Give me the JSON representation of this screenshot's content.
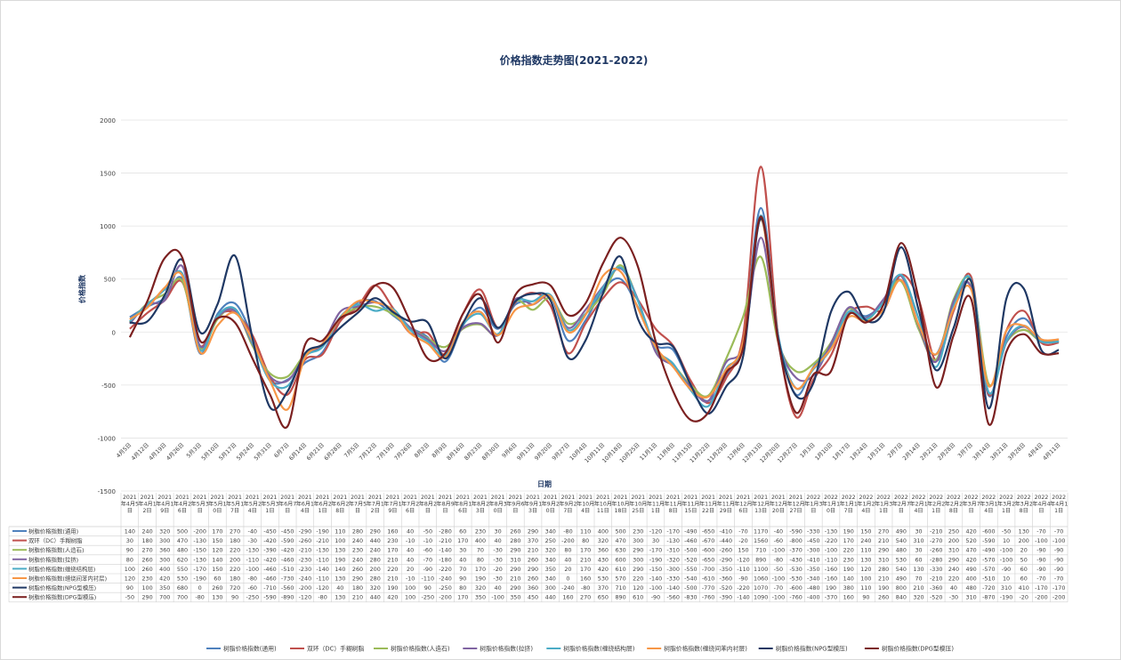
{
  "chart_data": {
    "type": "line",
    "title": "价格指数走势图(2021-2022)",
    "xlabel": "日期",
    "ylabel": "价格指数",
    "ylim": [
      -1500,
      2000
    ],
    "yticks": [
      -1500,
      -1000,
      -500,
      0,
      500,
      1000,
      1500,
      2000
    ],
    "grid": true,
    "legend_position": "bottom",
    "categories": [
      "4月5日",
      "4月12日",
      "4月19日",
      "4月26日",
      "5月3日",
      "5月10日",
      "5月17日",
      "5月24日",
      "5月31日",
      "6月7日",
      "6月14日",
      "6月21日",
      "6月28日",
      "7月5日",
      "7月12日",
      "7月19日",
      "7月26日",
      "8月2日",
      "8月9日",
      "8月16日",
      "8月23日",
      "8月30日",
      "9月6日",
      "9月13日",
      "9月20日",
      "9月27日",
      "10月4日",
      "10月11日",
      "10月18日",
      "10月25日",
      "11月1日",
      "11月8日",
      "11月15日",
      "11月22日",
      "11月29日",
      "12月6日",
      "12月13日",
      "12月20日",
      "12月27日",
      "1月3日",
      "1月10日",
      "1月17日",
      "1月24日",
      "1月31日",
      "2月7日",
      "2月14日",
      "2月21日",
      "2月28日",
      "3月7日",
      "3月14日",
      "3月21日",
      "3月28日",
      "4月4日",
      "4月11日"
    ],
    "table_headers": [
      "2021年4月5日",
      "2021年4月12日",
      "2021年4月19日",
      "2021年4月26日",
      "2021年5月3日",
      "2021年5月10日",
      "2021年5月17日",
      "2021年5月24日",
      "2021年5月31日",
      "2021年6月7日",
      "2021年6月14日",
      "2021年6月21日",
      "2021年6月28日",
      "2021年7月5日",
      "2021年7月12日",
      "2021年7月19日",
      "2021年7月26日",
      "2021年8月2日",
      "2021年8月9日",
      "2021年8月16日",
      "2021年8月23日",
      "2021年8月30日",
      "2021年9月6日",
      "2021年9月13日",
      "2021年9月20日",
      "2021年9月27日",
      "2021年10月4日",
      "2021年10月11日",
      "2021年10月18日",
      "2021年10月25日",
      "2021年11月1日",
      "2021年11月8日",
      "2021年11月15日",
      "2021年11月22日",
      "2021年11月29日",
      "2021年12月6日",
      "2021年12月13日",
      "2021年12月20日",
      "2021年12月27日",
      "2022年1月3日",
      "2022年1月10日",
      "2022年1月17日",
      "2022年1月24日",
      "2022年1月31日",
      "2022年2月7日",
      "2022年2月14日",
      "2022年2月21日",
      "2022年2月28日",
      "2022年3月7日",
      "2022年3月14日",
      "2022年3月21日",
      "2022年3月28日",
      "2022年4月4日",
      "2022年4月11日"
    ],
    "series": [
      {
        "name": "树脂价格指数(通用)",
        "color": "#4f81bd",
        "values": [
          140,
          240,
          320,
          500,
          -200,
          170,
          270,
          -40,
          -450,
          -450,
          -290,
          -190,
          110,
          280,
          290,
          160,
          40,
          -50,
          -280,
          60,
          230,
          30,
          260,
          290,
          340,
          -80,
          110,
          400,
          500,
          230,
          -120,
          -170,
          -490,
          -650,
          -410,
          -70,
          1170,
          -40,
          -590,
          -330,
          -130,
          190,
          150,
          270,
          490,
          30,
          -210,
          250,
          420,
          -600,
          -50,
          130,
          -70,
          -70
        ]
      },
      {
        "name": "双环（DC）手糊树脂",
        "color": "#c0504d",
        "values": [
          30,
          180,
          300,
          470,
          -130,
          150,
          180,
          -30,
          -420,
          -590,
          -260,
          -210,
          100,
          240,
          440,
          230,
          -10,
          -10,
          -210,
          170,
          400,
          40,
          280,
          370,
          250,
          -200,
          80,
          320,
          470,
          300,
          30,
          -130,
          -460,
          -670,
          -440,
          -20,
          1560,
          -60,
          -800,
          -450,
          -220,
          170,
          240,
          210,
          540,
          310,
          -270,
          200,
          520,
          -590,
          10,
          200,
          -100,
          -100
        ]
      },
      {
        "name": "树脂价格指数(人造石)",
        "color": "#9bbb59",
        "values": [
          90,
          270,
          360,
          480,
          -150,
          120,
          220,
          -130,
          -390,
          -420,
          -210,
          -130,
          130,
          230,
          240,
          170,
          40,
          -60,
          -140,
          30,
          70,
          -30,
          290,
          210,
          320,
          80,
          170,
          360,
          630,
          290,
          -170,
          -310,
          -500,
          -600,
          -260,
          150,
          710,
          -100,
          -370,
          -300,
          -100,
          220,
          110,
          290,
          480,
          30,
          -260,
          310,
          470,
          -490,
          -100,
          20,
          -90,
          -90
        ]
      },
      {
        "name": "树脂价格指数(拉挤)",
        "color": "#8064a2",
        "values": [
          80,
          260,
          300,
          620,
          -130,
          140,
          200,
          -110,
          -420,
          -460,
          -230,
          -110,
          190,
          240,
          280,
          210,
          40,
          -70,
          -180,
          40,
          80,
          -30,
          310,
          260,
          340,
          40,
          210,
          430,
          600,
          300,
          -190,
          -320,
          -520,
          -650,
          -290,
          -120,
          890,
          -80,
          -430,
          -410,
          -110,
          230,
          130,
          310,
          530,
          60,
          -280,
          290,
          420,
          -570,
          -100,
          50,
          -90,
          -90
        ]
      },
      {
        "name": "树脂价格指数(缠绕结构层)",
        "color": "#4bacc6",
        "values": [
          100,
          260,
          400,
          550,
          -170,
          150,
          220,
          -100,
          -460,
          -510,
          -230,
          -140,
          140,
          260,
          200,
          220,
          20,
          -90,
          -220,
          70,
          170,
          -20,
          290,
          290,
          350,
          20,
          170,
          420,
          610,
          290,
          -150,
          -300,
          -550,
          -700,
          -350,
          -110,
          1100,
          -50,
          -530,
          -350,
          -160,
          190,
          120,
          280,
          540,
          130,
          -330,
          240,
          490,
          -570,
          -90,
          60,
          -90,
          -90
        ]
      },
      {
        "name": "树脂价格指数(缠绕间苯内衬层)",
        "color": "#f79646",
        "values": [
          120,
          230,
          420,
          530,
          -190,
          60,
          180,
          -80,
          -460,
          -730,
          -240,
          -110,
          130,
          290,
          280,
          210,
          -10,
          -110,
          -240,
          90,
          190,
          -30,
          210,
          260,
          340,
          0,
          160,
          530,
          570,
          220,
          -140,
          -330,
          -540,
          -610,
          -360,
          -90,
          1060,
          -100,
          -530,
          -340,
          -160,
          140,
          100,
          210,
          490,
          70,
          -210,
          220,
          400,
          -510,
          10,
          60,
          -70,
          -70
        ]
      },
      {
        "name": "树脂价格指数(NPG型模压)",
        "color": "#1f3864",
        "values": [
          90,
          100,
          350,
          680,
          0,
          260,
          720,
          -60,
          -710,
          -560,
          -200,
          -120,
          40,
          180,
          320,
          190,
          100,
          90,
          -250,
          80,
          320,
          40,
          290,
          360,
          300,
          -240,
          -80,
          370,
          710,
          120,
          -100,
          -140,
          -500,
          -770,
          -520,
          -220,
          1070,
          -70,
          -600,
          -480,
          190,
          380,
          110,
          190,
          800,
          210,
          -360,
          40,
          480,
          -720,
          310,
          410,
          -170,
          -170
        ]
      },
      {
        "name": "树脂价格指数(DPG型模压)",
        "color": "#7b2020",
        "values": [
          -50,
          290,
          700,
          700,
          -80,
          130,
          90,
          -250,
          -590,
          -890,
          -120,
          -80,
          130,
          210,
          440,
          420,
          100,
          -250,
          -200,
          170,
          350,
          -100,
          350,
          450,
          440,
          160,
          270,
          650,
          890,
          610,
          -90,
          -560,
          -830,
          -760,
          -390,
          -140,
          1090,
          -100,
          -760,
          -400,
          -370,
          160,
          90,
          260,
          840,
          320,
          -520,
          -30,
          310,
          -870,
          -190,
          -20,
          -200,
          -200
        ]
      }
    ]
  }
}
